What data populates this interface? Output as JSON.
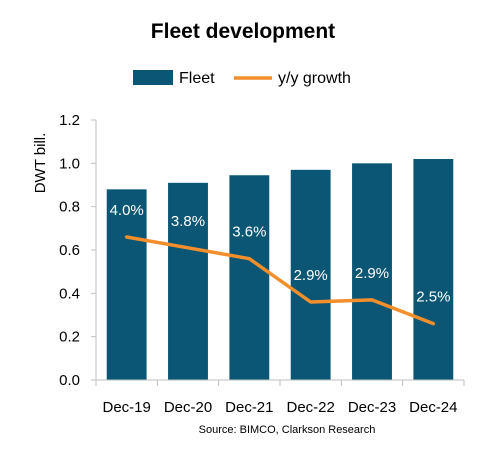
{
  "chart_data": {
    "type": "bar",
    "title": "Fleet development",
    "categories": [
      "Dec-19",
      "Dec-20",
      "Dec-21",
      "Dec-22",
      "Dec-23",
      "Dec-24"
    ],
    "ylabel": "DWT bill.",
    "xlabel": "",
    "ylim": [
      0,
      1.2
    ],
    "yticks": [
      "0.0",
      "0.2",
      "0.4",
      "0.6",
      "0.8",
      "1.0",
      "1.2"
    ],
    "grid": false,
    "legend": "top",
    "series": [
      {
        "name": "Fleet",
        "type": "bar",
        "color": "#0b5675",
        "values": [
          0.88,
          0.91,
          0.945,
          0.97,
          1.0,
          1.02
        ]
      },
      {
        "name": "y/y growth",
        "type": "line",
        "color": "#f28e2b",
        "values": [
          0.66,
          0.61,
          0.56,
          0.36,
          0.37,
          0.26
        ],
        "labels": [
          "4.0%",
          "3.8%",
          "3.6%",
          "2.9%",
          "2.9%",
          "2.5%"
        ]
      }
    ],
    "source": "Source: BIMCO, Clarkson Research"
  }
}
